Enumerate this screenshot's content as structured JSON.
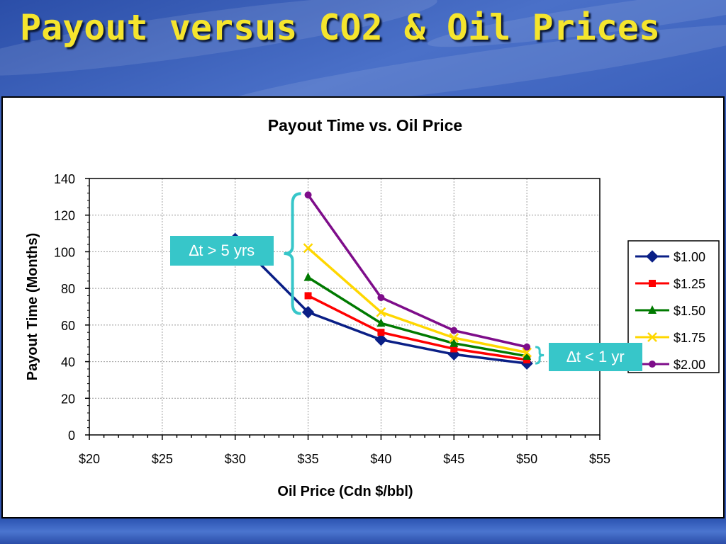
{
  "slide": {
    "title": "Payout versus CO2 & Oil Prices"
  },
  "callouts": {
    "large_delta": "∆t > 5 yrs",
    "small_delta": "∆t < 1 yr"
  },
  "colors": {
    "title": "#f5e52d",
    "callout_bg": "#37c6c9",
    "brace": "#37c6c9"
  },
  "chart_data": {
    "type": "line",
    "title": "Payout Time vs. Oil Price",
    "xlabel": "Oil Price (Cdn $/bbl)",
    "ylabel": "Payout Time (Months)",
    "xlim": [
      20,
      55
    ],
    "ylim": [
      0,
      140
    ],
    "x_ticks": [
      20,
      25,
      30,
      35,
      40,
      45,
      50,
      55
    ],
    "x_tick_labels": [
      "$20",
      "$25",
      "$30",
      "$35",
      "$40",
      "$45",
      "$50",
      "$55"
    ],
    "y_ticks": [
      0,
      20,
      40,
      60,
      80,
      100,
      120,
      140
    ],
    "y_tick_labels": [
      "0",
      "20",
      "40",
      "60",
      "80",
      "100",
      "120",
      "140"
    ],
    "grid": true,
    "legend_position": "right",
    "series": [
      {
        "name": "$1.00",
        "color": "#0a1f86",
        "marker": "diamond",
        "points": [
          [
            30,
            107
          ],
          [
            35,
            67
          ],
          [
            40,
            52
          ],
          [
            45,
            44
          ],
          [
            50,
            39
          ]
        ]
      },
      {
        "name": "$1.25",
        "color": "#ff0000",
        "marker": "square",
        "points": [
          [
            35,
            76
          ],
          [
            40,
            56
          ],
          [
            45,
            47
          ],
          [
            50,
            41
          ]
        ]
      },
      {
        "name": "$1.50",
        "color": "#007a00",
        "marker": "triangle",
        "points": [
          [
            35,
            86
          ],
          [
            40,
            61
          ],
          [
            45,
            50
          ],
          [
            50,
            43
          ]
        ]
      },
      {
        "name": "$1.75",
        "color": "#ffd700",
        "marker": "x",
        "points": [
          [
            35,
            102
          ],
          [
            40,
            67
          ],
          [
            45,
            53
          ],
          [
            50,
            45
          ]
        ]
      },
      {
        "name": "$2.00",
        "color": "#7e0d8a",
        "marker": "circle",
        "points": [
          [
            35,
            131
          ],
          [
            40,
            75
          ],
          [
            45,
            57
          ],
          [
            50,
            48
          ]
        ]
      }
    ]
  }
}
